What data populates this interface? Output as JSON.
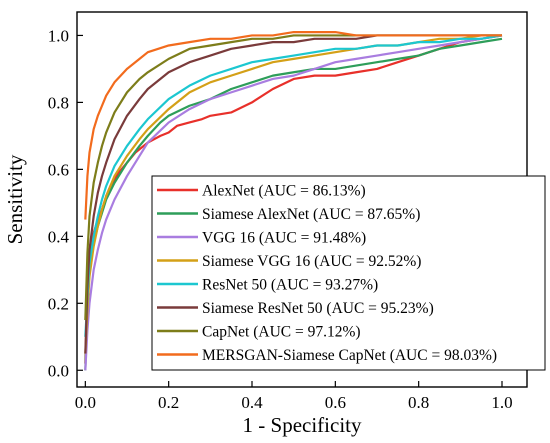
{
  "chart_data": {
    "type": "line",
    "xlabel": "1 - Specificity",
    "ylabel": "Sensitivity",
    "xlim": [
      -0.02,
      1.06
    ],
    "ylim": [
      -0.05,
      1.07
    ],
    "x_ticks": [
      "0.0",
      "0.2",
      "0.4",
      "0.6",
      "0.8",
      "1.0"
    ],
    "y_ticks": [
      "0.0",
      "0.2",
      "0.4",
      "0.6",
      "0.8",
      "1.0"
    ],
    "grid": false,
    "legend_position": "bottom-right",
    "series": [
      {
        "name": "AlexNet (AUC = 86.13%)",
        "color": "#e8302a",
        "x": [
          0.0,
          0.005,
          0.01,
          0.02,
          0.03,
          0.04,
          0.05,
          0.06,
          0.07,
          0.08,
          0.1,
          0.12,
          0.15,
          0.18,
          0.2,
          0.22,
          0.25,
          0.28,
          0.3,
          0.35,
          0.4,
          0.45,
          0.5,
          0.55,
          0.6,
          0.65,
          0.7,
          0.75,
          0.8,
          0.85,
          0.9,
          0.95,
          1.0
        ],
        "y": [
          0.02,
          0.25,
          0.35,
          0.41,
          0.45,
          0.48,
          0.52,
          0.55,
          0.57,
          0.59,
          0.62,
          0.65,
          0.68,
          0.7,
          0.71,
          0.73,
          0.74,
          0.75,
          0.76,
          0.77,
          0.8,
          0.84,
          0.87,
          0.88,
          0.88,
          0.89,
          0.9,
          0.92,
          0.94,
          0.96,
          0.98,
          0.99,
          1.0
        ]
      },
      {
        "name": "Siamese AlexNet (AUC = 87.65%)",
        "color": "#2e9e5a",
        "x": [
          0.0,
          0.005,
          0.01,
          0.02,
          0.03,
          0.04,
          0.05,
          0.07,
          0.1,
          0.13,
          0.15,
          0.18,
          0.2,
          0.25,
          0.3,
          0.35,
          0.4,
          0.45,
          0.5,
          0.55,
          0.6,
          0.65,
          0.7,
          0.75,
          0.8,
          0.85,
          0.9,
          0.95,
          1.0
        ],
        "y": [
          0.0,
          0.2,
          0.3,
          0.38,
          0.43,
          0.47,
          0.51,
          0.56,
          0.62,
          0.67,
          0.7,
          0.74,
          0.76,
          0.79,
          0.81,
          0.84,
          0.86,
          0.88,
          0.89,
          0.9,
          0.9,
          0.91,
          0.92,
          0.93,
          0.94,
          0.96,
          0.97,
          0.98,
          0.99
        ]
      },
      {
        "name": "VGG 16 (AUC = 91.48%)",
        "color": "#a97de0",
        "x": [
          0.0,
          0.005,
          0.01,
          0.02,
          0.03,
          0.04,
          0.05,
          0.07,
          0.1,
          0.13,
          0.15,
          0.2,
          0.25,
          0.3,
          0.35,
          0.4,
          0.45,
          0.5,
          0.55,
          0.6,
          0.65,
          0.7,
          0.75,
          0.8,
          0.85,
          0.9,
          0.95,
          1.0
        ],
        "y": [
          0.0,
          0.12,
          0.2,
          0.3,
          0.36,
          0.41,
          0.45,
          0.51,
          0.58,
          0.64,
          0.68,
          0.74,
          0.78,
          0.81,
          0.83,
          0.85,
          0.87,
          0.88,
          0.9,
          0.92,
          0.93,
          0.94,
          0.95,
          0.96,
          0.97,
          0.98,
          0.99,
          1.0
        ]
      },
      {
        "name": "Siamese VGG 16 (AUC =  92.52%)",
        "color": "#d4a017",
        "x": [
          0.0,
          0.005,
          0.01,
          0.02,
          0.03,
          0.04,
          0.05,
          0.07,
          0.1,
          0.13,
          0.15,
          0.2,
          0.25,
          0.3,
          0.35,
          0.4,
          0.45,
          0.5,
          0.55,
          0.6,
          0.65,
          0.7,
          0.75,
          0.8,
          0.85,
          0.9,
          0.95,
          1.0
        ],
        "y": [
          0.05,
          0.18,
          0.28,
          0.37,
          0.43,
          0.48,
          0.52,
          0.58,
          0.64,
          0.69,
          0.72,
          0.78,
          0.83,
          0.86,
          0.88,
          0.9,
          0.92,
          0.93,
          0.94,
          0.95,
          0.96,
          0.97,
          0.97,
          0.98,
          0.99,
          0.99,
          1.0,
          1.0
        ]
      },
      {
        "name": "ResNet 50  (AUC = 93.27%)",
        "color": "#1cc7d0",
        "x": [
          0.0,
          0.005,
          0.01,
          0.02,
          0.03,
          0.04,
          0.05,
          0.07,
          0.1,
          0.13,
          0.15,
          0.2,
          0.25,
          0.3,
          0.35,
          0.4,
          0.45,
          0.5,
          0.55,
          0.6,
          0.65,
          0.7,
          0.75,
          0.8,
          0.85,
          0.9,
          0.95,
          1.0
        ],
        "y": [
          0.1,
          0.22,
          0.32,
          0.4,
          0.46,
          0.51,
          0.55,
          0.61,
          0.67,
          0.72,
          0.75,
          0.81,
          0.85,
          0.88,
          0.9,
          0.92,
          0.93,
          0.94,
          0.95,
          0.96,
          0.96,
          0.97,
          0.97,
          0.98,
          0.98,
          0.99,
          0.99,
          1.0
        ]
      },
      {
        "name": "Siamese ResNet 50 (AUC = 95.23%)",
        "color": "#7a3b3b",
        "x": [
          0.0,
          0.005,
          0.01,
          0.02,
          0.03,
          0.04,
          0.05,
          0.07,
          0.1,
          0.13,
          0.15,
          0.2,
          0.25,
          0.3,
          0.35,
          0.4,
          0.45,
          0.5,
          0.55,
          0.6,
          0.65,
          0.7,
          0.75,
          0.8,
          0.85,
          0.9,
          0.95,
          1.0
        ],
        "y": [
          0.05,
          0.25,
          0.36,
          0.46,
          0.53,
          0.58,
          0.62,
          0.69,
          0.76,
          0.81,
          0.84,
          0.89,
          0.92,
          0.94,
          0.96,
          0.97,
          0.98,
          0.98,
          0.99,
          0.99,
          0.99,
          1.0,
          1.0,
          1.0,
          1.0,
          1.0,
          1.0,
          1.0
        ]
      },
      {
        "name": "CapNet (AUC = 97.12%)",
        "color": "#7d7d1a",
        "x": [
          0.0,
          0.005,
          0.01,
          0.02,
          0.03,
          0.04,
          0.05,
          0.07,
          0.1,
          0.13,
          0.15,
          0.2,
          0.25,
          0.3,
          0.35,
          0.4,
          0.45,
          0.5,
          0.55,
          0.6,
          0.65,
          0.7,
          0.75,
          0.8,
          0.85,
          0.9,
          0.95,
          1.0
        ],
        "y": [
          0.15,
          0.35,
          0.46,
          0.56,
          0.62,
          0.67,
          0.71,
          0.77,
          0.83,
          0.87,
          0.89,
          0.93,
          0.96,
          0.97,
          0.98,
          0.99,
          0.99,
          1.0,
          1.0,
          1.0,
          1.0,
          1.0,
          1.0,
          1.0,
          1.0,
          1.0,
          1.0,
          1.0
        ]
      },
      {
        "name": "MERSGAN-Siamese CapNet (AUC = 98.03%)",
        "color": "#f26b1d",
        "x": [
          0.0,
          0.005,
          0.01,
          0.02,
          0.03,
          0.04,
          0.05,
          0.07,
          0.1,
          0.13,
          0.15,
          0.2,
          0.25,
          0.3,
          0.35,
          0.4,
          0.45,
          0.5,
          0.55,
          0.6,
          0.65,
          0.7,
          0.75,
          0.8,
          0.85,
          0.9,
          0.95,
          1.0
        ],
        "y": [
          0.45,
          0.58,
          0.65,
          0.72,
          0.76,
          0.79,
          0.82,
          0.86,
          0.9,
          0.93,
          0.95,
          0.97,
          0.98,
          0.99,
          0.99,
          1.0,
          1.0,
          1.01,
          1.01,
          1.01,
          1.0,
          1.0,
          1.0,
          1.0,
          1.0,
          1.0,
          1.0,
          1.0
        ]
      }
    ]
  }
}
